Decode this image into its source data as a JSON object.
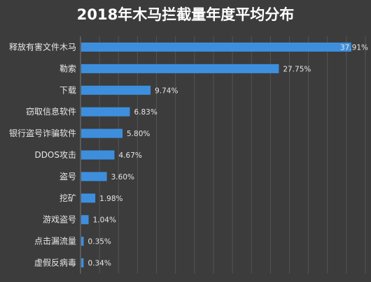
{
  "chart_data": {
    "type": "bar",
    "orientation": "horizontal",
    "title": "2018年木马拦截量年度平均分布",
    "xlabel": "",
    "ylabel": "",
    "xlim": [
      0,
      40
    ],
    "grid": true,
    "legend": "none",
    "bar_color": "#3d8fde",
    "categories": [
      "释放有害文件木马",
      "勒索",
      "下载",
      "窃取信息软件",
      "银行盗号诈骗软件",
      "DDOS攻击",
      "盗号",
      "挖矿",
      "游戏盗号",
      "点击漏流量",
      "虚假反病毒"
    ],
    "values": [
      37.91,
      27.75,
      9.74,
      6.83,
      5.8,
      4.67,
      3.6,
      1.98,
      1.04,
      0.35,
      0.34
    ],
    "value_labels": [
      "37.91%",
      "27.75%",
      "9.74%",
      "6.83%",
      "5.80%",
      "4.67%",
      "3.60%",
      "1.98%",
      "1.04%",
      "0.35%",
      "0.34%"
    ]
  }
}
